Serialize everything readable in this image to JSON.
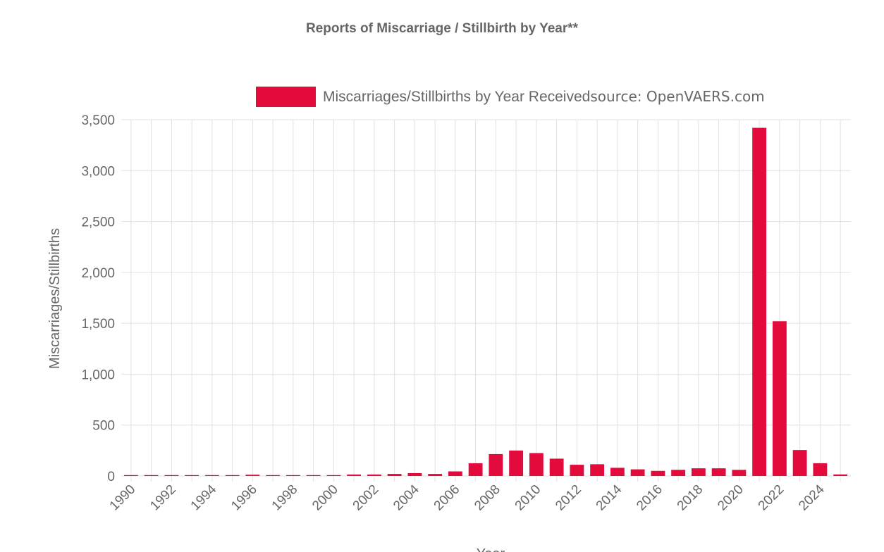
{
  "chart_data": {
    "type": "bar",
    "title": "Reports of Miscarriage / Stillbirth by Year**",
    "xlabel": "Year",
    "ylabel": "Miscarriages/Stillbirths",
    "legend": {
      "label": "Miscarriages/Stillbirths by Year Received",
      "source": "source: OpenVAERS.com",
      "position": "top-right"
    },
    "bar_color": "#e30b3c",
    "ylim": [
      0,
      3500
    ],
    "yticks": [
      0,
      500,
      1000,
      1500,
      2000,
      2500,
      3000,
      3500
    ],
    "ytick_labels": [
      "0",
      "500",
      "1,000",
      "1,500",
      "2,000",
      "2,500",
      "3,000",
      "3,500"
    ],
    "categories": [
      "1990",
      "1991",
      "1992",
      "1993",
      "1994",
      "1995",
      "1996",
      "1997",
      "1998",
      "1999",
      "2000",
      "2001",
      "2002",
      "2003",
      "2004",
      "2005",
      "2006",
      "2007",
      "2008",
      "2009",
      "2010",
      "2011",
      "2012",
      "2013",
      "2014",
      "2015",
      "2016",
      "2017",
      "2018",
      "2019",
      "2020",
      "2021",
      "2022",
      "2023",
      "2024",
      "2025"
    ],
    "xtick_labels": [
      "1990",
      "1992",
      "1994",
      "1996",
      "1998",
      "2000",
      "2002",
      "2004",
      "2006",
      "2008",
      "2010",
      "2012",
      "2014",
      "2016",
      "2018",
      "2020",
      "2022",
      "2024"
    ],
    "values": [
      2,
      4,
      3,
      3,
      3,
      3,
      12,
      6,
      8,
      5,
      7,
      14,
      14,
      20,
      28,
      20,
      45,
      125,
      215,
      250,
      225,
      170,
      110,
      115,
      80,
      65,
      50,
      60,
      75,
      75,
      60,
      3420,
      1520,
      255,
      125,
      15
    ],
    "grid": true
  }
}
